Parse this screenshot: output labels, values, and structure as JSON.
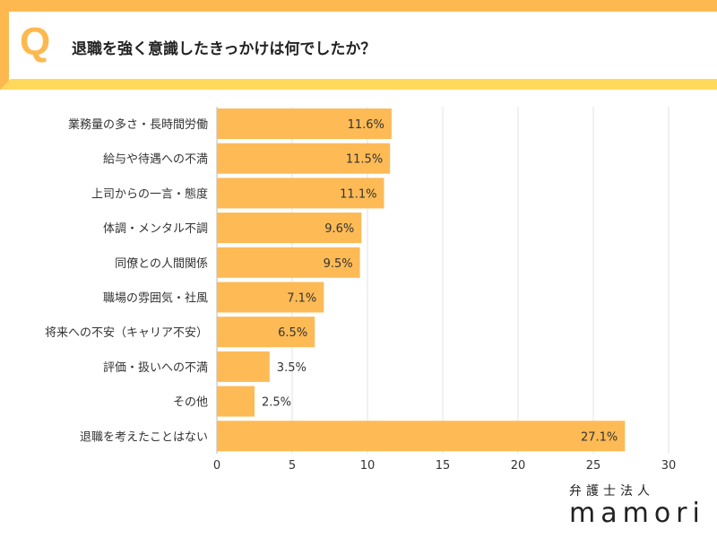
{
  "header": {
    "q_mark": "Q",
    "title": "退職を強く意識したきっかけは何でしたか？"
  },
  "logo": {
    "line1": "弁護士法人",
    "line2": "mamori"
  },
  "colors": {
    "bar": "#FDBA55",
    "frame_orange": "#FDB94F",
    "frame_yellow": "#FFD95B"
  },
  "chart_data": {
    "type": "bar",
    "orientation": "horizontal",
    "categories": [
      "業務量の多さ・長時間労働",
      "給与や待遇への不満",
      "上司からの一言・態度",
      "体調・メンタル不調",
      "同僚との人間関係",
      "職場の雰囲気・社風",
      "将来への不安（キャリア不安）",
      "評価・扱いへの不満",
      "その他",
      "退職を考えたことはない"
    ],
    "values": [
      11.6,
      11.5,
      11.1,
      9.6,
      9.5,
      7.1,
      6.5,
      3.5,
      2.5,
      27.1
    ],
    "data_labels": [
      "11.6%",
      "11.5%",
      "11.1%",
      "9.6%",
      "9.5%",
      "7.1%",
      "6.5%",
      "3.5%",
      "2.5%",
      "27.1%"
    ],
    "xlim": [
      0,
      30
    ],
    "xticks": [
      "0",
      "5",
      "10",
      "15",
      "20",
      "25",
      "30"
    ],
    "grid": true
  }
}
